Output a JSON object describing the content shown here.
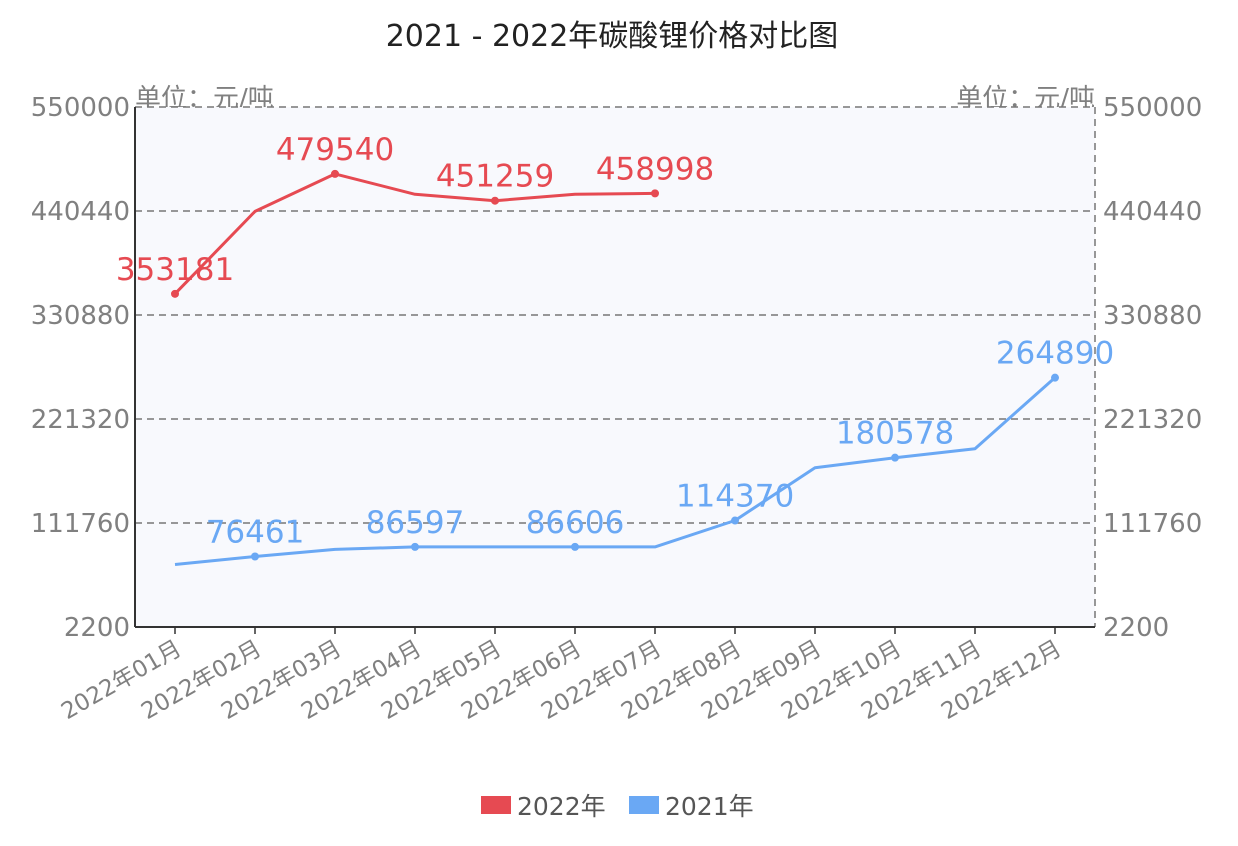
{
  "chart_data": {
    "type": "line",
    "title": "2021 - 2022年碳酸锂价格对比图",
    "unit_left": "单位：元/吨",
    "unit_right": "单位：元/吨",
    "categories": [
      "2022年01月",
      "2022年02月",
      "2022年03月",
      "2022年04月",
      "2022年05月",
      "2022年06月",
      "2022年07月",
      "2022年08月",
      "2022年09月",
      "2022年10月",
      "2022年11月",
      "2022年12月"
    ],
    "ylim": [
      2200,
      550000
    ],
    "yticks": [
      2200,
      111760,
      221320,
      330880,
      440440,
      550000
    ],
    "grid": true,
    "legend_position": "bottom",
    "series": [
      {
        "name": "2022年",
        "color": "#e64a52",
        "values": [
          353181,
          440000,
          479540,
          458000,
          451259,
          458000,
          458998,
          null,
          null,
          null,
          null,
          null
        ],
        "labels": [
          "353181",
          "",
          "479540",
          "",
          "451259",
          "",
          "458998",
          "",
          "",
          "",
          "",
          ""
        ]
      },
      {
        "name": "2021年",
        "color": "#6aa8f4",
        "values": [
          68000,
          76461,
          84000,
          86597,
          86600,
          86606,
          86610,
          114370,
          170000,
          180578,
          190000,
          264890
        ],
        "labels": [
          "",
          "76461",
          "",
          "86597",
          "",
          "86606",
          "",
          "114370",
          "",
          "180578",
          "",
          "264890"
        ]
      }
    ]
  }
}
